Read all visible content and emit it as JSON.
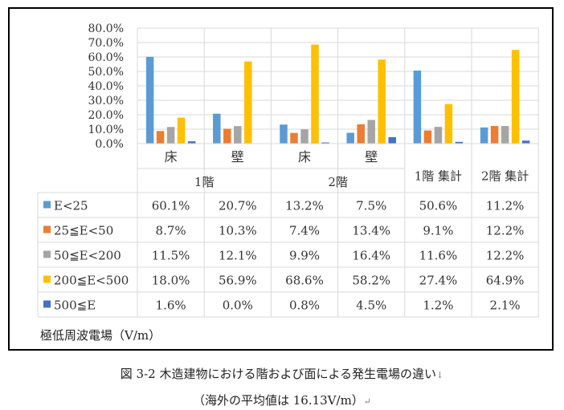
{
  "chart_data": {
    "type": "bar",
    "ylim": [
      0,
      0.8
    ],
    "yticks": [
      "0.0%",
      "10.0%",
      "20.0%",
      "30.0%",
      "40.0%",
      "50.0%",
      "60.0%",
      "70.0%",
      "80.0%"
    ],
    "grid": true,
    "categories": [
      "床",
      "壁",
      "床",
      "壁",
      "1階 集計",
      "2階 集計"
    ],
    "category_groups": [
      {
        "label": "1階",
        "span": 2
      },
      {
        "label": "2階",
        "span": 2
      },
      {
        "label": "",
        "span": 1
      },
      {
        "label": "",
        "span": 1
      }
    ],
    "series": [
      {
        "name": "E<25",
        "color": "#5B9BD5",
        "values": [
          0.601,
          0.207,
          0.132,
          0.075,
          0.506,
          0.112
        ],
        "labels": [
          "60.1%",
          "20.7%",
          "13.2%",
          "7.5%",
          "50.6%",
          "11.2%"
        ]
      },
      {
        "name": "25≦E<50",
        "color": "#ED7D31",
        "values": [
          0.087,
          0.103,
          0.074,
          0.134,
          0.091,
          0.122
        ],
        "labels": [
          "8.7%",
          "10.3%",
          "7.4%",
          "13.4%",
          "9.1%",
          "12.2%"
        ]
      },
      {
        "name": "50≦E<200",
        "color": "#A5A5A5",
        "values": [
          0.115,
          0.121,
          0.099,
          0.164,
          0.116,
          0.122
        ],
        "labels": [
          "11.5%",
          "12.1%",
          "9.9%",
          "16.4%",
          "11.6%",
          "12.2%"
        ]
      },
      {
        "name": "200≦E<500",
        "color": "#FFC000",
        "values": [
          0.18,
          0.569,
          0.686,
          0.582,
          0.274,
          0.649
        ],
        "labels": [
          "18.0%",
          "56.9%",
          "68.6%",
          "58.2%",
          "27.4%",
          "64.9%"
        ]
      },
      {
        "name": "500≦E",
        "color": "#4472C4",
        "values": [
          0.016,
          0.0,
          0.008,
          0.045,
          0.012,
          0.021
        ],
        "labels": [
          "1.6%",
          "0.0%",
          "0.8%",
          "4.5%",
          "1.2%",
          "2.1%"
        ]
      }
    ]
  },
  "unit_note": "極低周波電場（V/m）",
  "caption": {
    "line1": "図 3-2  木造建物における階および面による発生電場の違い",
    "line2": "（海外の平均値は 16.13V/m）",
    "mark1": "↓",
    "mark2": "↵"
  }
}
